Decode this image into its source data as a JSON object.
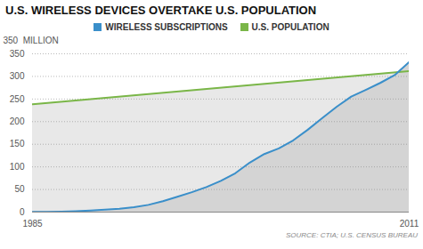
{
  "chart_data": {
    "type": "line",
    "title": "U.S. WIRELESS DEVICES OVERTAKE U.S. POPULATION",
    "ylabel": "350  MILLION",
    "caption": "SOURCE: CTIA; U.S. CENSUS BUREAU",
    "x": [
      1985,
      1986,
      1987,
      1988,
      1989,
      1990,
      1991,
      1992,
      1993,
      1994,
      1995,
      1996,
      1997,
      1998,
      1999,
      2000,
      2001,
      2002,
      2003,
      2004,
      2005,
      2006,
      2007,
      2008,
      2009,
      2010,
      2011
    ],
    "series": [
      {
        "name": "WIRELESS SUBSCRIPTIONS",
        "color": "#3a8fca",
        "values": [
          0.3,
          0.7,
          1.2,
          2.1,
          3.5,
          5.3,
          7.6,
          11.0,
          16.0,
          24.1,
          33.8,
          44.0,
          55.3,
          69.2,
          86.0,
          109.5,
          128.4,
          140.8,
          158.7,
          182.1,
          207.9,
          233.0,
          255.4,
          270.3,
          285.6,
          302.9,
          331.9
        ]
      },
      {
        "name": "U.S. POPULATION",
        "color": "#7ab648",
        "x": [
          1985,
          2011
        ],
        "values": [
          238.5,
          311.6
        ]
      }
    ],
    "xlim": [
      1985,
      2011
    ],
    "ylim": [
      0,
      350
    ],
    "xticks": [
      1985,
      2011
    ],
    "yticks": [
      0,
      50,
      100,
      150,
      200,
      250,
      300,
      350
    ],
    "grid": true,
    "legend": "top"
  }
}
